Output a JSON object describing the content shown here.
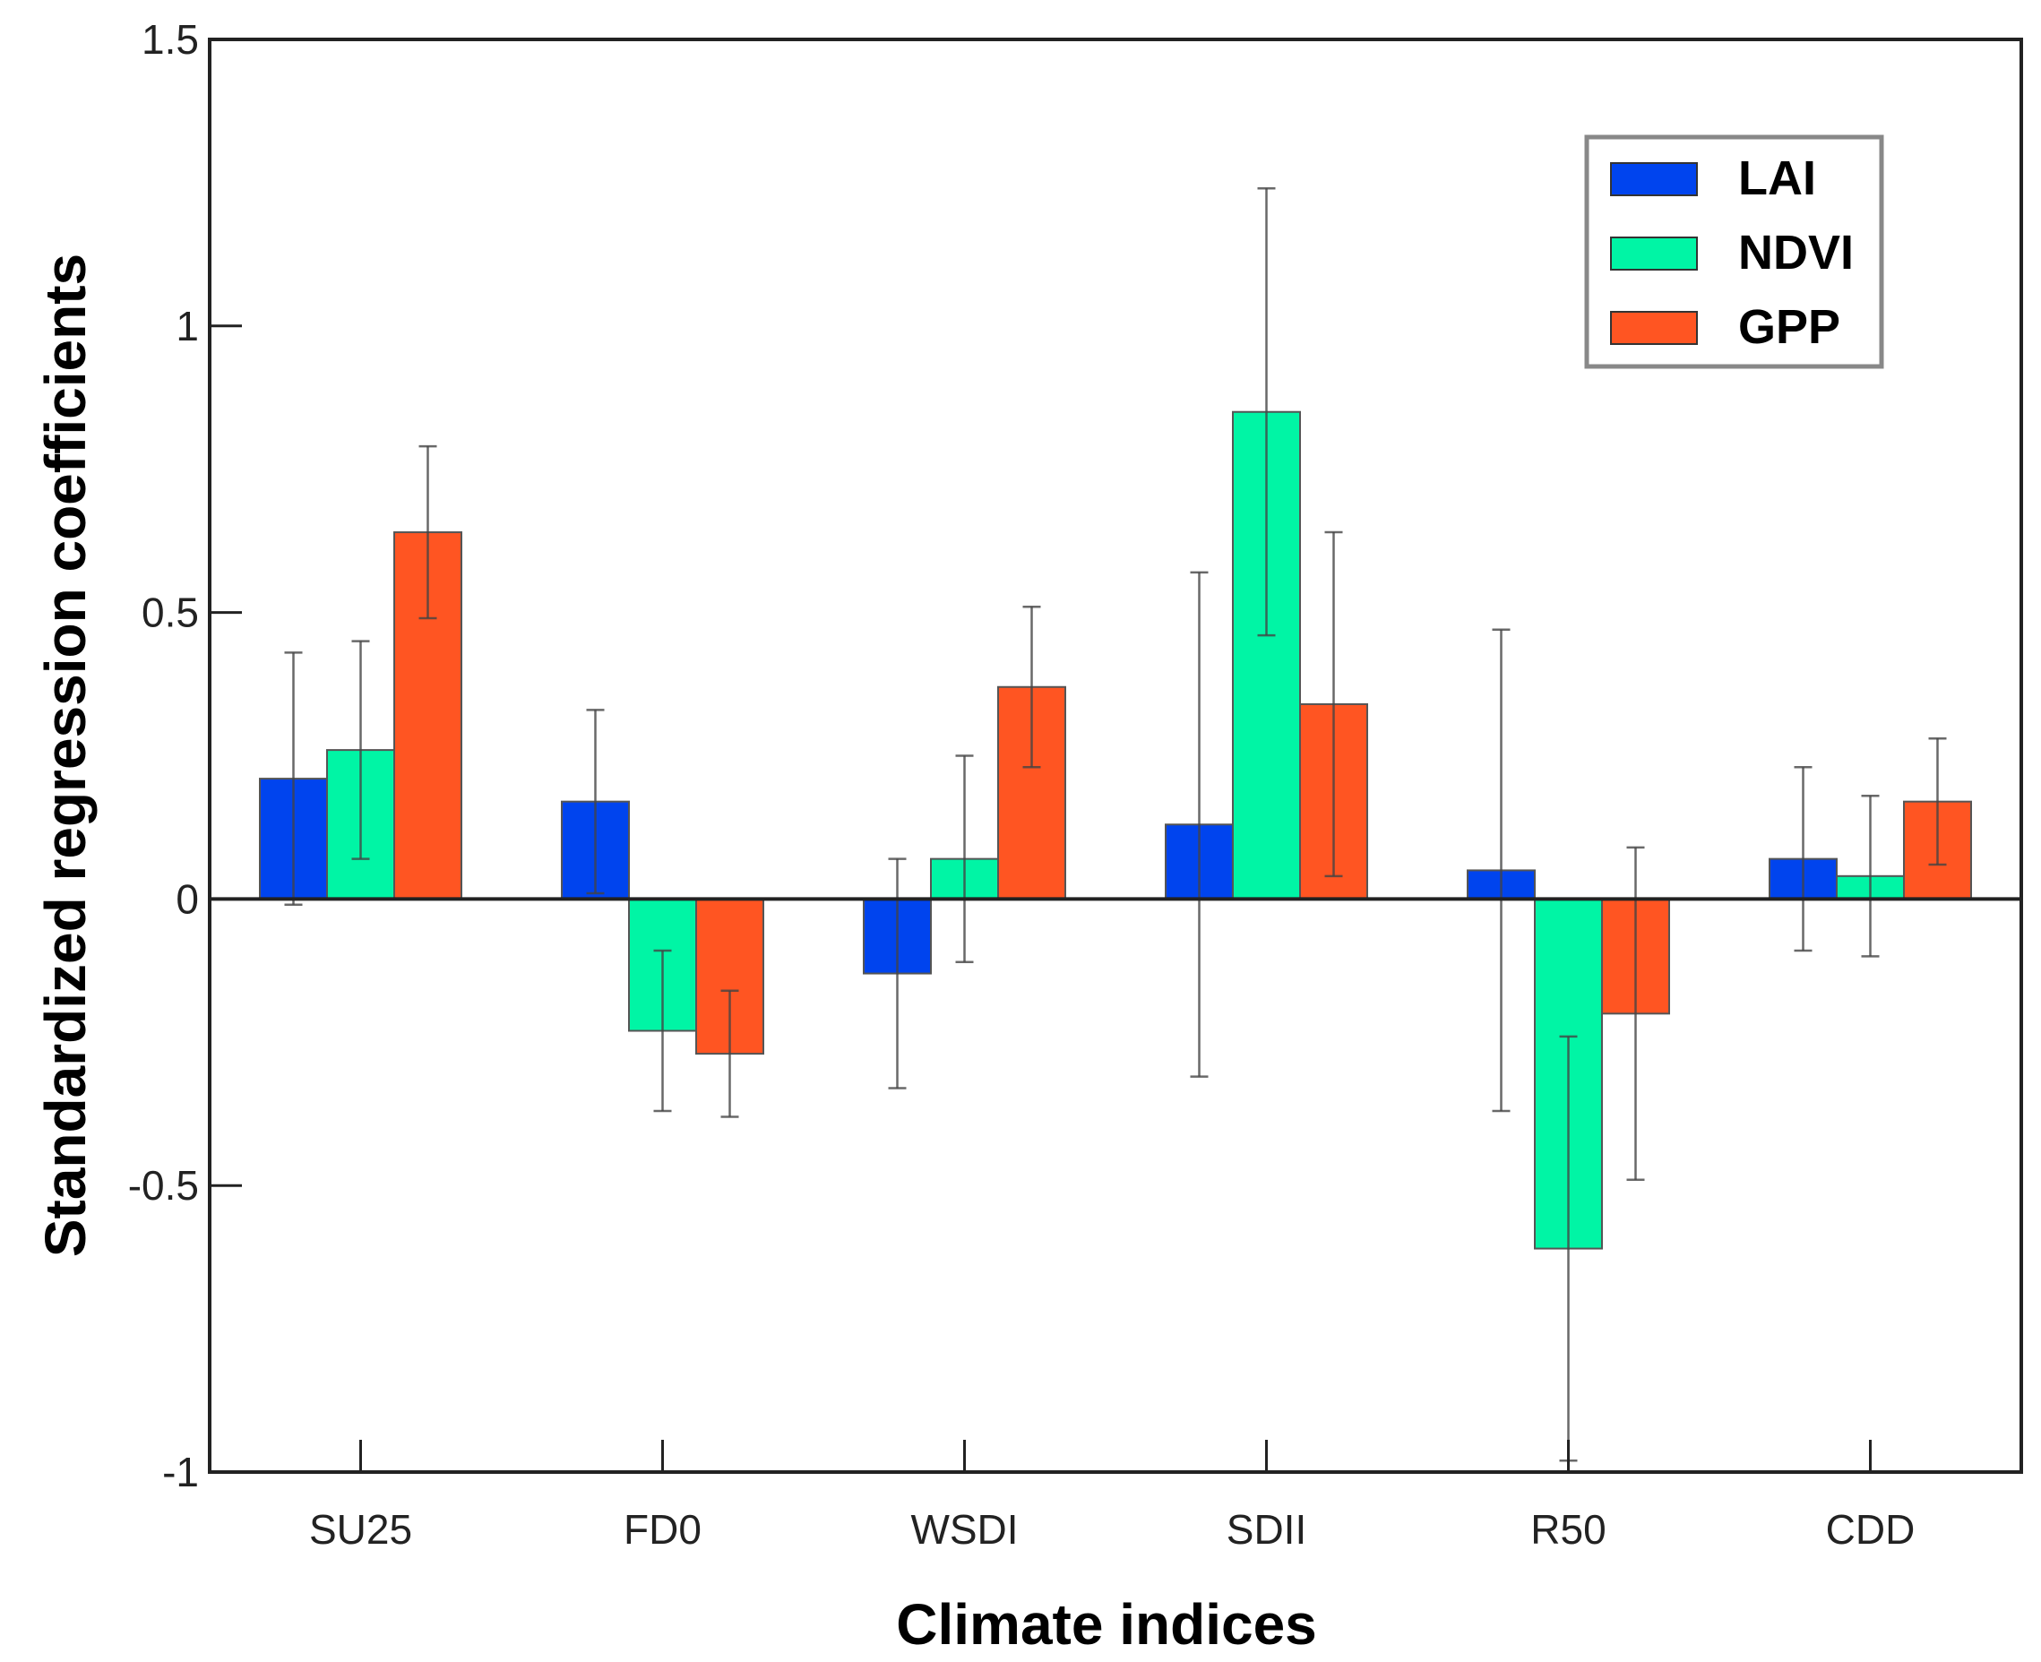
{
  "chart_data": {
    "type": "bar",
    "title": "",
    "xlabel": "Climate indices",
    "ylabel": "Standardized regression coefficients",
    "ylim": [
      -1,
      1.5
    ],
    "yticks": [
      -1,
      -0.5,
      0,
      0.5,
      1,
      1.5
    ],
    "ytick_labels": [
      "-1",
      "-0.5",
      "0",
      "0.5",
      "1",
      "1.5"
    ],
    "categories": [
      "SU25",
      "FD0",
      "WSDI",
      "SDII",
      "R50",
      "CDD"
    ],
    "legend_position": "top-right",
    "series": [
      {
        "name": "LAI",
        "color": "#0044ee",
        "values": [
          0.21,
          0.17,
          -0.13,
          0.13,
          0.05,
          0.07
        ],
        "error_low": [
          -0.01,
          0.01,
          -0.33,
          -0.31,
          -0.37,
          -0.09
        ],
        "error_high": [
          0.43,
          0.33,
          0.07,
          0.57,
          0.47,
          0.23
        ]
      },
      {
        "name": "NDVI",
        "color": "#00f5a5",
        "values": [
          0.26,
          -0.23,
          0.07,
          0.85,
          -0.61,
          0.04
        ],
        "error_low": [
          0.07,
          -0.37,
          -0.11,
          0.46,
          -0.98,
          -0.1
        ],
        "error_high": [
          0.45,
          -0.09,
          0.25,
          1.24,
          -0.24,
          0.18
        ]
      },
      {
        "name": "GPP",
        "color": "#ff5522",
        "values": [
          0.64,
          -0.27,
          0.37,
          0.34,
          -0.2,
          0.17
        ],
        "error_low": [
          0.49,
          -0.38,
          0.23,
          0.04,
          -0.49,
          0.06
        ],
        "error_high": [
          0.79,
          -0.16,
          0.51,
          0.64,
          0.09,
          0.28
        ]
      }
    ]
  }
}
